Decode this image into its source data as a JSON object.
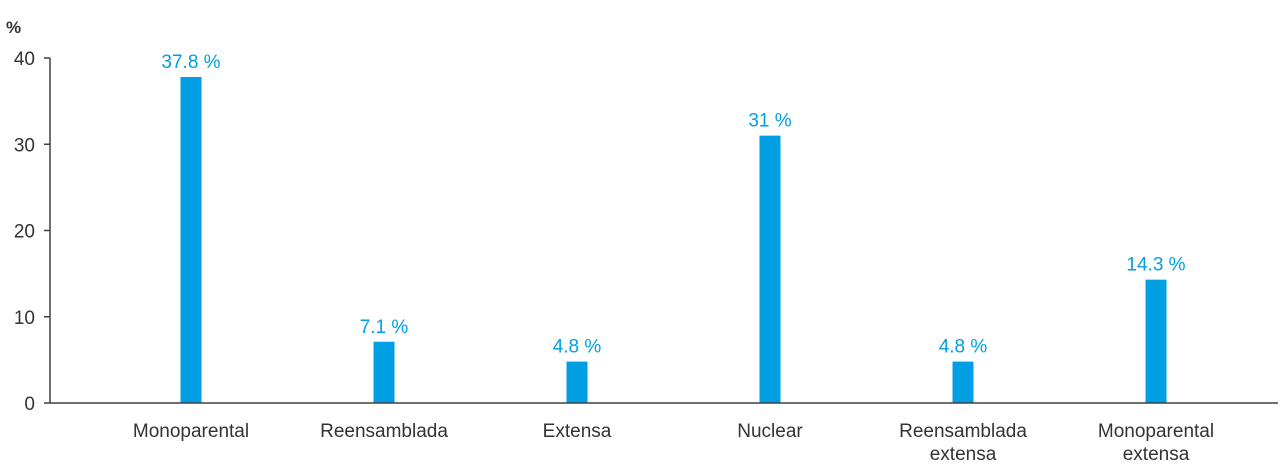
{
  "chart_data": {
    "type": "bar",
    "y_unit_label": "%",
    "categories": [
      [
        "Monoparental"
      ],
      [
        "Reensamblada"
      ],
      [
        "Extensa"
      ],
      [
        "Nuclear"
      ],
      [
        "Reensamblada",
        "extensa"
      ],
      [
        "Monoparental",
        "extensa"
      ]
    ],
    "values": [
      37.8,
      7.1,
      4.8,
      31,
      4.8,
      14.3
    ],
    "data_labels": [
      "37.8 %",
      "7.1 %",
      "4.8 %",
      "31 %",
      "4.8 %",
      "14.3 %"
    ],
    "ylim": [
      0,
      40
    ],
    "yticks": [
      0,
      10,
      20,
      30,
      40
    ],
    "grid": false,
    "bar_color": "#009fe3",
    "data_label_color": "#009fe3"
  }
}
